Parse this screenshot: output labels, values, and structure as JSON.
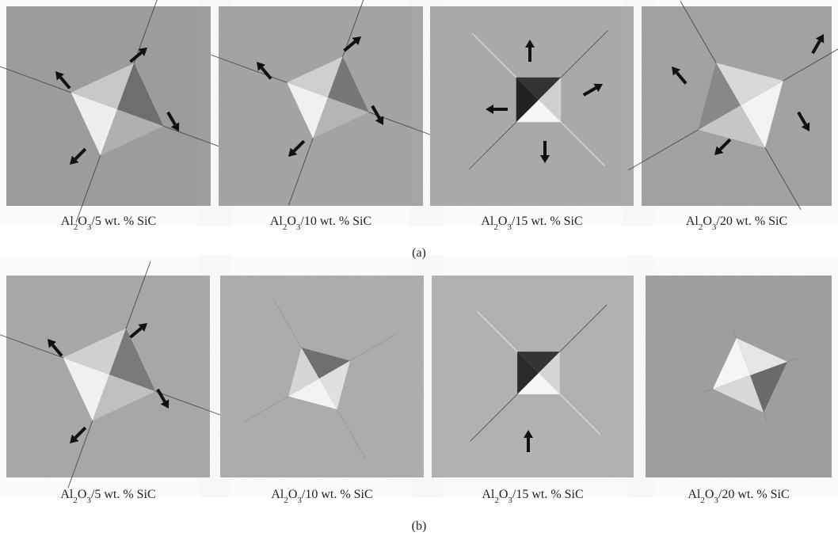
{
  "figure": {
    "rows": [
      {
        "label": "(a)",
        "captions": [
          [
            {
              "text": "Al"
            },
            {
              "text": "2",
              "sub": true
            },
            {
              "text": "O"
            },
            {
              "text": "3",
              "sub": true
            },
            {
              "text": "/5 wt. % SiC"
            }
          ],
          [
            {
              "text": "Al"
            },
            {
              "text": "2",
              "sub": true
            },
            {
              "text": "O"
            },
            {
              "text": "3",
              "sub": true
            },
            {
              "text": "/10 wt. % SiC"
            }
          ],
          [
            {
              "text": "Al"
            },
            {
              "text": "2",
              "sub": true
            },
            {
              "text": "O"
            },
            {
              "text": "3",
              "sub": true
            },
            {
              "text": "/15 wt. % SiC"
            }
          ],
          [
            {
              "text": "Al"
            },
            {
              "text": "2",
              "sub": true
            },
            {
              "text": "O"
            },
            {
              "text": "3",
              "sub": true
            },
            {
              "text": "/20 wt. % SiC"
            }
          ]
        ]
      },
      {
        "label": "(b)",
        "captions": [
          [
            {
              "text": "Al"
            },
            {
              "text": "2",
              "sub": true
            },
            {
              "text": "O"
            },
            {
              "text": "3",
              "sub": true
            },
            {
              "text": "/5 wt. % SiC"
            }
          ],
          [
            {
              "text": "Al"
            },
            {
              "text": "2",
              "sub": true
            },
            {
              "text": "O"
            },
            {
              "text": "3",
              "sub": true
            },
            {
              "text": "/10 wt. % SiC"
            }
          ],
          [
            {
              "text": "Al"
            },
            {
              "text": "2",
              "sub": true
            },
            {
              "text": "O"
            },
            {
              "text": "3",
              "sub": true
            },
            {
              "text": "/15 wt. % SiC"
            }
          ],
          [
            {
              "text": "Al"
            },
            {
              "text": "2",
              "sub": true
            },
            {
              "text": "O"
            },
            {
              "text": "3",
              "sub": true
            },
            {
              "text": "/20 wt. % SiC"
            }
          ]
        ]
      }
    ]
  }
}
